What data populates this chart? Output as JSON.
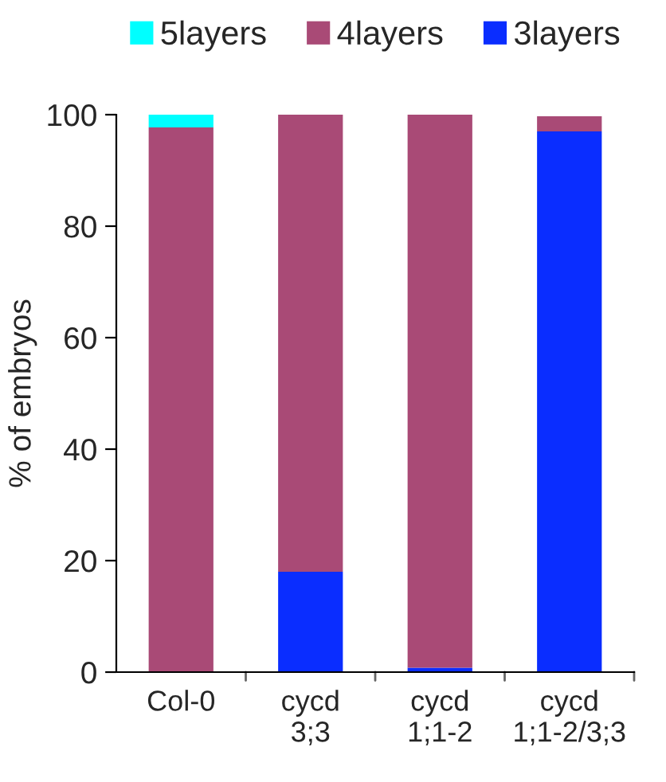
{
  "chart_data": {
    "type": "bar",
    "stacked": true,
    "ylabel": "% of embryos",
    "categories": [
      "Col-0",
      "cycd\n3;3",
      "cycd\n1;1-2",
      "cycd\n1;1-2/3;3"
    ],
    "series": [
      {
        "name": "3layers",
        "color": "#0a2dff",
        "values": [
          0,
          18,
          0.8,
          97
        ]
      },
      {
        "name": "4layers",
        "color": "#a94a76",
        "values": [
          97.7,
          82,
          99.2,
          2.7
        ]
      },
      {
        "name": "5layers",
        "color": "#00ffff",
        "values": [
          2.3,
          0,
          0,
          0
        ]
      }
    ],
    "ylim": [
      0,
      100
    ],
    "yticks": [
      0,
      20,
      40,
      60,
      80,
      100
    ],
    "grid": false,
    "legend": "top"
  }
}
